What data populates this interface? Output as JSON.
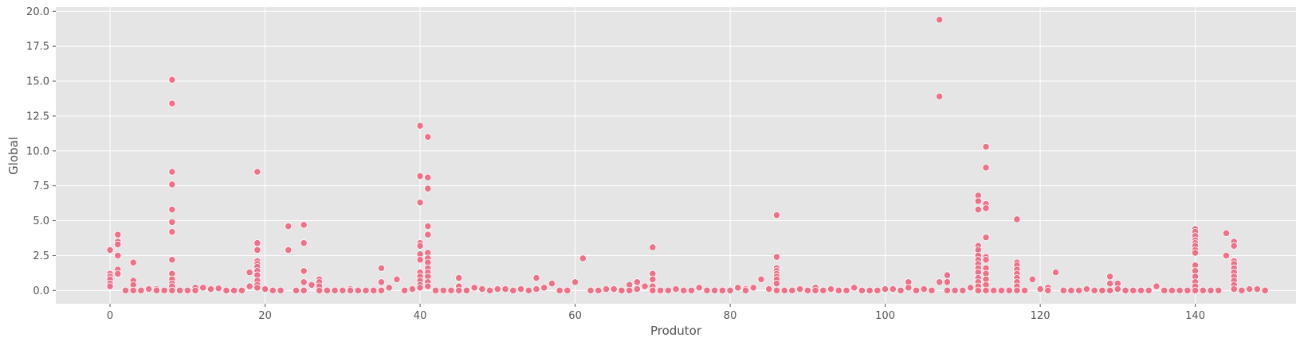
{
  "chart_data": {
    "type": "scatter",
    "title": "",
    "xlabel": "Produtor",
    "ylabel": "Global",
    "xlim": [
      -7,
      153
    ],
    "ylim": [
      -0.95,
      20.3
    ],
    "xticks": [
      0,
      20,
      40,
      60,
      80,
      100,
      120,
      140
    ],
    "xtick_labels": [
      "0",
      "20",
      "40",
      "60",
      "80",
      "100",
      "120",
      "140"
    ],
    "yticks": [
      0,
      2.5,
      5,
      7.5,
      10,
      12.5,
      15,
      17.5,
      20
    ],
    "ytick_labels": [
      "0.0",
      "2.5",
      "5.0",
      "7.5",
      "10.0",
      "12.5",
      "15.0",
      "17.5",
      "20.0"
    ],
    "grid": true,
    "background_color": "#e5e5e5",
    "point_color": "#f07088",
    "points": [
      [
        0,
        2.9
      ],
      [
        0,
        1.2
      ],
      [
        0,
        1.0
      ],
      [
        0,
        0.8
      ],
      [
        0,
        0.5
      ],
      [
        0,
        0.3
      ],
      [
        1,
        4.0
      ],
      [
        1,
        3.5
      ],
      [
        1,
        3.3
      ],
      [
        1,
        2.5
      ],
      [
        1,
        1.5
      ],
      [
        1,
        1.2
      ],
      [
        2,
        0.0
      ],
      [
        3,
        2.0
      ],
      [
        3,
        0.7
      ],
      [
        3,
        0.4
      ],
      [
        3,
        0.0
      ],
      [
        4,
        0.0
      ],
      [
        5,
        0.1
      ],
      [
        6,
        0.1
      ],
      [
        6,
        0.0
      ],
      [
        7,
        0.0
      ],
      [
        8,
        15.1
      ],
      [
        8,
        13.4
      ],
      [
        8,
        8.5
      ],
      [
        8,
        7.6
      ],
      [
        8,
        5.8
      ],
      [
        8,
        4.9
      ],
      [
        8,
        4.2
      ],
      [
        8,
        2.2
      ],
      [
        8,
        1.2
      ],
      [
        8,
        0.8
      ],
      [
        8,
        0.5
      ],
      [
        8,
        0.3
      ],
      [
        8,
        0.0
      ],
      [
        9,
        0.0
      ],
      [
        10,
        0.0
      ],
      [
        11,
        0.2
      ],
      [
        11,
        0.0
      ],
      [
        12,
        0.2
      ],
      [
        13,
        0.1
      ],
      [
        14,
        0.15
      ],
      [
        15,
        0.0
      ],
      [
        16,
        0.0
      ],
      [
        17,
        0.0
      ],
      [
        18,
        1.3
      ],
      [
        18,
        0.3
      ],
      [
        19,
        8.5
      ],
      [
        19,
        3.4
      ],
      [
        19,
        2.9
      ],
      [
        19,
        2.1
      ],
      [
        19,
        1.9
      ],
      [
        19,
        1.7
      ],
      [
        19,
        1.4
      ],
      [
        19,
        1.1
      ],
      [
        19,
        0.7
      ],
      [
        19,
        0.4
      ],
      [
        19,
        0.2
      ],
      [
        20,
        0.1
      ],
      [
        21,
        0.0
      ],
      [
        22,
        0.0
      ],
      [
        23,
        4.6
      ],
      [
        23,
        2.9
      ],
      [
        24,
        0.0
      ],
      [
        25,
        4.7
      ],
      [
        25,
        3.4
      ],
      [
        25,
        1.4
      ],
      [
        25,
        0.6
      ],
      [
        25,
        0.0
      ],
      [
        26,
        0.4
      ],
      [
        27,
        0.8
      ],
      [
        27,
        0.6
      ],
      [
        27,
        0.3
      ],
      [
        27,
        0.0
      ],
      [
        28,
        0.0
      ],
      [
        29,
        0.0
      ],
      [
        30,
        0.0
      ],
      [
        31,
        0.1
      ],
      [
        31,
        0.0
      ],
      [
        32,
        0.0
      ],
      [
        33,
        0.0
      ],
      [
        34,
        0.0
      ],
      [
        35,
        1.6
      ],
      [
        35,
        0.6
      ],
      [
        35,
        0.0
      ],
      [
        36,
        0.2
      ],
      [
        37,
        0.8
      ],
      [
        38,
        0.0
      ],
      [
        39,
        0.1
      ],
      [
        40,
        11.8
      ],
      [
        40,
        8.2
      ],
      [
        40,
        6.3
      ],
      [
        40,
        3.4
      ],
      [
        40,
        3.2
      ],
      [
        40,
        2.6
      ],
      [
        40,
        2.2
      ],
      [
        40,
        1.3
      ],
      [
        40,
        1.0
      ],
      [
        40,
        0.7
      ],
      [
        40,
        0.4
      ],
      [
        40,
        0.2
      ],
      [
        41,
        11.0
      ],
      [
        41,
        8.1
      ],
      [
        41,
        7.3
      ],
      [
        41,
        4.6
      ],
      [
        41,
        4.0
      ],
      [
        41,
        2.7
      ],
      [
        41,
        2.3
      ],
      [
        41,
        2.0
      ],
      [
        41,
        1.6
      ],
      [
        41,
        1.3
      ],
      [
        41,
        1.0
      ],
      [
        41,
        0.6
      ],
      [
        41,
        0.3
      ],
      [
        42,
        0.0
      ],
      [
        43,
        0.0
      ],
      [
        44,
        0.0
      ],
      [
        45,
        0.9
      ],
      [
        45,
        0.3
      ],
      [
        45,
        0.0
      ],
      [
        46,
        0.0
      ],
      [
        47,
        0.2
      ],
      [
        48,
        0.1
      ],
      [
        49,
        0.0
      ],
      [
        50,
        0.1
      ],
      [
        51,
        0.1
      ],
      [
        52,
        0.0
      ],
      [
        53,
        0.1
      ],
      [
        54,
        0.0
      ],
      [
        55,
        0.9
      ],
      [
        55,
        0.1
      ],
      [
        56,
        0.2
      ],
      [
        57,
        0.5
      ],
      [
        58,
        0.0
      ],
      [
        59,
        0.0
      ],
      [
        60,
        0.6
      ],
      [
        61,
        2.3
      ],
      [
        62,
        0.0
      ],
      [
        63,
        0.0
      ],
      [
        64,
        0.1
      ],
      [
        65,
        0.1
      ],
      [
        66,
        0.0
      ],
      [
        67,
        0.4
      ],
      [
        67,
        0.0
      ],
      [
        68,
        0.6
      ],
      [
        68,
        0.1
      ],
      [
        69,
        0.3
      ],
      [
        70,
        3.1
      ],
      [
        70,
        1.2
      ],
      [
        70,
        0.8
      ],
      [
        70,
        0.3
      ],
      [
        70,
        0.0
      ],
      [
        71,
        0.0
      ],
      [
        72,
        0.0
      ],
      [
        73,
        0.1
      ],
      [
        74,
        0.0
      ],
      [
        75,
        0.0
      ],
      [
        76,
        0.2
      ],
      [
        77,
        0.0
      ],
      [
        78,
        0.0
      ],
      [
        79,
        0.0
      ],
      [
        80,
        0.0
      ],
      [
        81,
        0.2
      ],
      [
        82,
        0.1
      ],
      [
        82,
        0.0
      ],
      [
        83,
        0.2
      ],
      [
        84,
        0.8
      ],
      [
        85,
        0.1
      ],
      [
        86,
        5.4
      ],
      [
        86,
        2.4
      ],
      [
        86,
        1.6
      ],
      [
        86,
        1.4
      ],
      [
        86,
        1.2
      ],
      [
        86,
        1.0
      ],
      [
        86,
        0.8
      ],
      [
        86,
        0.5
      ],
      [
        86,
        0.0
      ],
      [
        87,
        0.0
      ],
      [
        88,
        0.0
      ],
      [
        89,
        0.1
      ],
      [
        90,
        0.0
      ],
      [
        91,
        0.2
      ],
      [
        91,
        0.0
      ],
      [
        92,
        0.0
      ],
      [
        93,
        0.1
      ],
      [
        94,
        0.0
      ],
      [
        95,
        0.0
      ],
      [
        96,
        0.2
      ],
      [
        97,
        0.0
      ],
      [
        98,
        0.0
      ],
      [
        99,
        0.0
      ],
      [
        100,
        0.1
      ],
      [
        101,
        0.1
      ],
      [
        102,
        0.0
      ],
      [
        103,
        0.6
      ],
      [
        103,
        0.2
      ],
      [
        104,
        0.0
      ],
      [
        105,
        0.1
      ],
      [
        106,
        0.0
      ],
      [
        107,
        19.4
      ],
      [
        107,
        13.9
      ],
      [
        107,
        0.6
      ],
      [
        108,
        1.1
      ],
      [
        108,
        0.6
      ],
      [
        108,
        0.0
      ],
      [
        109,
        0.0
      ],
      [
        110,
        0.0
      ],
      [
        111,
        0.2
      ],
      [
        112,
        6.8
      ],
      [
        112,
        6.4
      ],
      [
        112,
        5.8
      ],
      [
        112,
        3.2
      ],
      [
        112,
        2.9
      ],
      [
        112,
        2.5
      ],
      [
        112,
        2.2
      ],
      [
        112,
        1.9
      ],
      [
        112,
        1.6
      ],
      [
        112,
        1.3
      ],
      [
        112,
        0.9
      ],
      [
        112,
        0.6
      ],
      [
        112,
        0.3
      ],
      [
        112,
        0.0
      ],
      [
        113,
        10.3
      ],
      [
        113,
        8.8
      ],
      [
        113,
        6.2
      ],
      [
        113,
        5.9
      ],
      [
        113,
        3.8
      ],
      [
        113,
        2.4
      ],
      [
        113,
        2.2
      ],
      [
        113,
        1.6
      ],
      [
        113,
        1.2
      ],
      [
        113,
        0.8
      ],
      [
        113,
        0.4
      ],
      [
        113,
        0.0
      ],
      [
        114,
        0.0
      ],
      [
        115,
        0.0
      ],
      [
        116,
        0.0
      ],
      [
        117,
        5.1
      ],
      [
        117,
        2.0
      ],
      [
        117,
        1.8
      ],
      [
        117,
        1.5
      ],
      [
        117,
        1.2
      ],
      [
        117,
        0.9
      ],
      [
        117,
        0.6
      ],
      [
        117,
        0.3
      ],
      [
        117,
        0.0
      ],
      [
        118,
        0.0
      ],
      [
        119,
        0.8
      ],
      [
        120,
        0.1
      ],
      [
        121,
        0.2
      ],
      [
        121,
        0.0
      ],
      [
        122,
        1.3
      ],
      [
        123,
        0.0
      ],
      [
        124,
        0.0
      ],
      [
        125,
        0.0
      ],
      [
        126,
        0.1
      ],
      [
        127,
        0.0
      ],
      [
        128,
        0.0
      ],
      [
        129,
        1.0
      ],
      [
        129,
        0.5
      ],
      [
        129,
        0.0
      ],
      [
        130,
        0.5
      ],
      [
        130,
        0.1
      ],
      [
        131,
        0.0
      ],
      [
        132,
        0.0
      ],
      [
        133,
        0.0
      ],
      [
        134,
        0.0
      ],
      [
        135,
        0.3
      ],
      [
        136,
        0.0
      ],
      [
        137,
        0.0
      ],
      [
        138,
        0.0
      ],
      [
        139,
        0.0
      ],
      [
        140,
        4.4
      ],
      [
        140,
        4.2
      ],
      [
        140,
        3.9
      ],
      [
        140,
        3.6
      ],
      [
        140,
        3.4
      ],
      [
        140,
        3.2
      ],
      [
        140,
        2.9
      ],
      [
        140,
        2.7
      ],
      [
        140,
        1.8
      ],
      [
        140,
        1.4
      ],
      [
        140,
        1.0
      ],
      [
        140,
        0.6
      ],
      [
        140,
        0.3
      ],
      [
        140,
        0.0
      ],
      [
        141,
        0.0
      ],
      [
        142,
        0.0
      ],
      [
        143,
        0.0
      ],
      [
        144,
        4.1
      ],
      [
        144,
        2.5
      ],
      [
        145,
        3.5
      ],
      [
        145,
        3.2
      ],
      [
        145,
        2.1
      ],
      [
        145,
        1.9
      ],
      [
        145,
        1.6
      ],
      [
        145,
        1.3
      ],
      [
        145,
        1.0
      ],
      [
        145,
        0.7
      ],
      [
        145,
        0.4
      ],
      [
        145,
        0.1
      ],
      [
        146,
        0.0
      ],
      [
        147,
        0.1
      ],
      [
        148,
        0.1
      ],
      [
        149,
        0.0
      ]
    ]
  }
}
